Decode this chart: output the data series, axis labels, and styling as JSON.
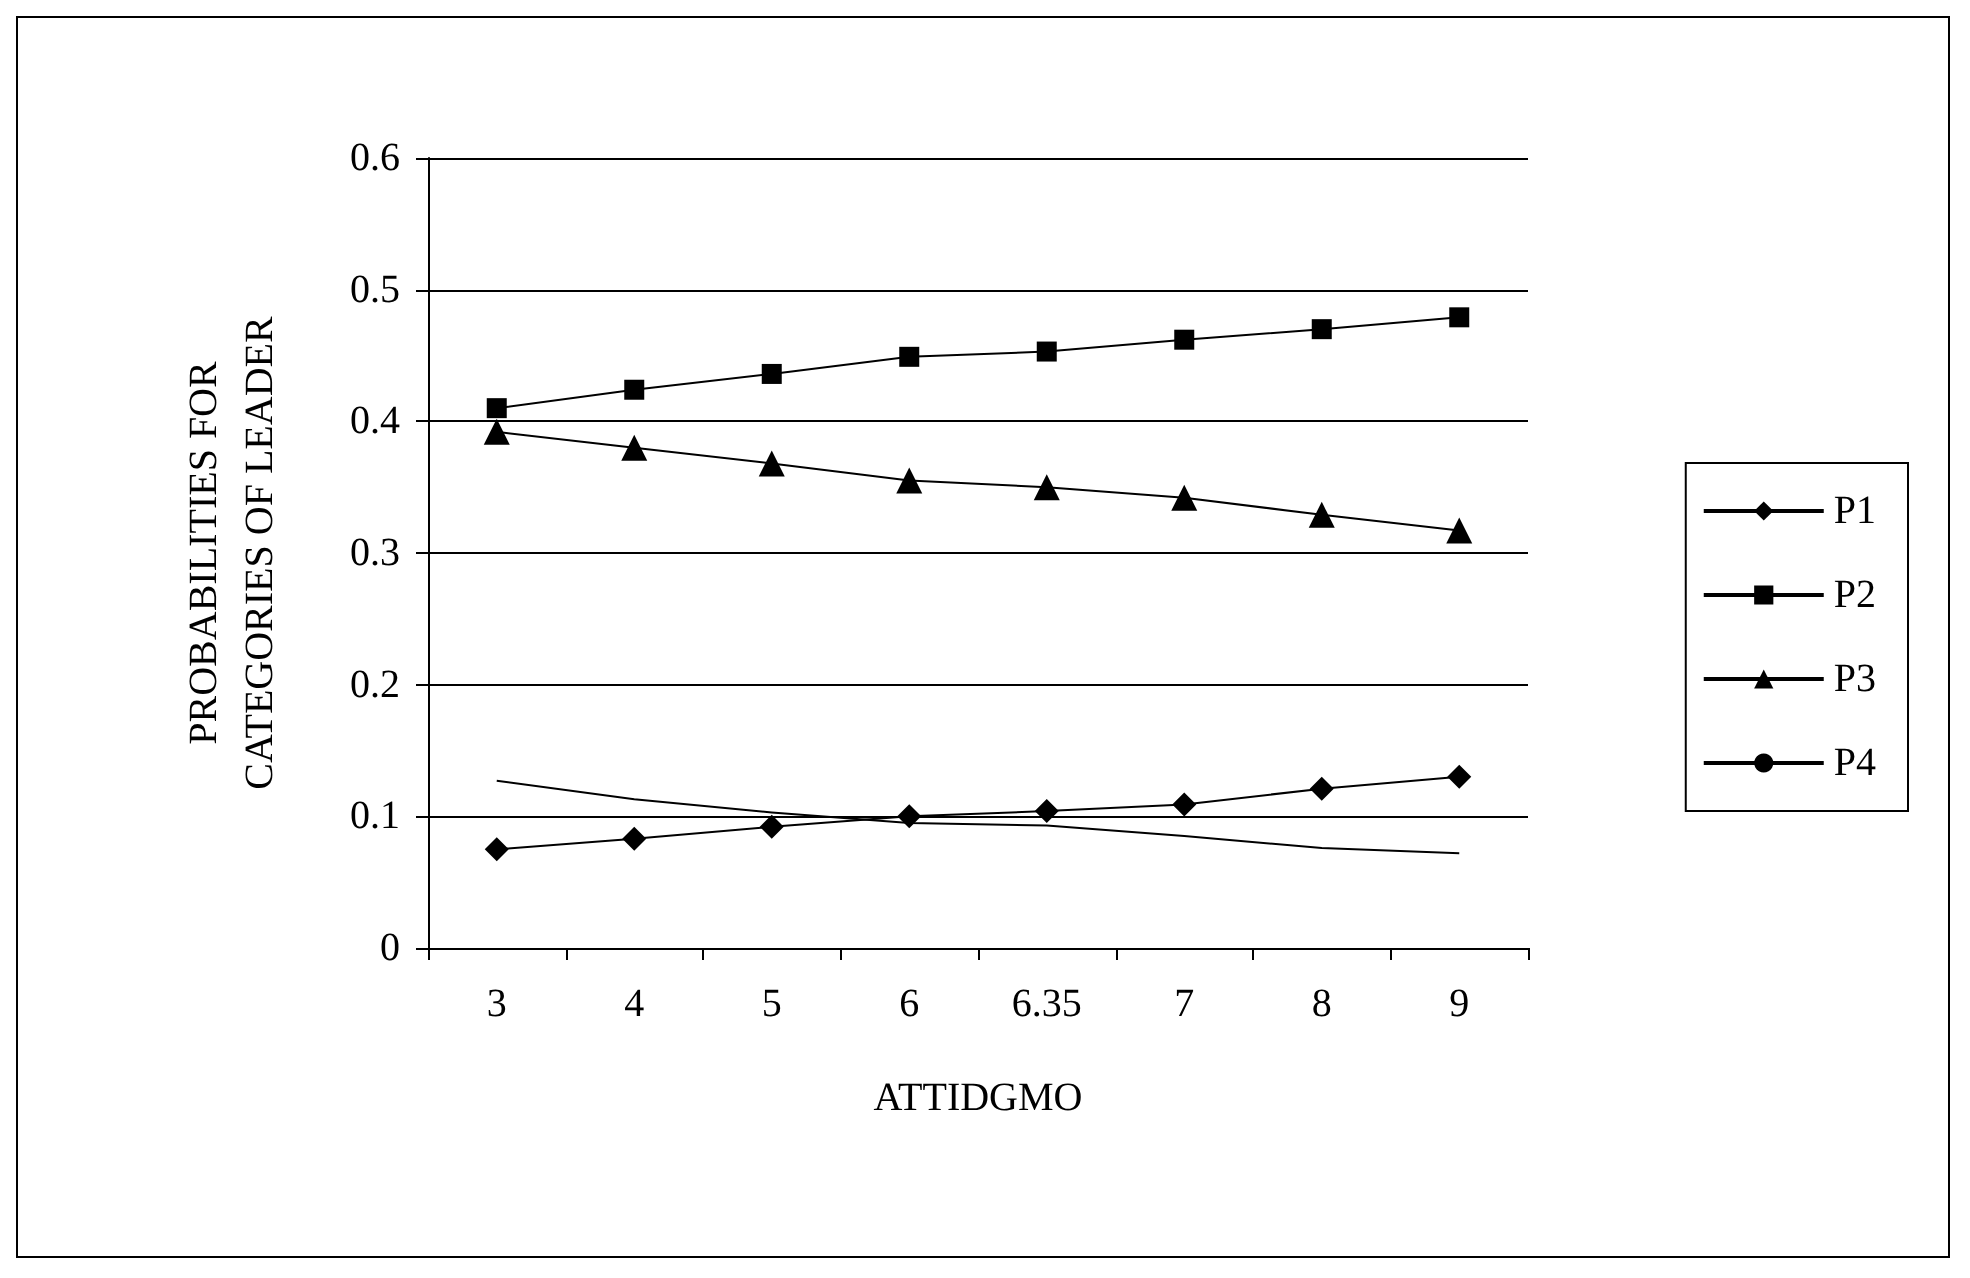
{
  "chart_data": {
    "type": "line",
    "xlabel": "ATTIDGMO",
    "ylabel": "PROBABILITIES FOR\nCATEGORIES OF LEADER",
    "categories": [
      "3",
      "4",
      "5",
      "6",
      "6.35",
      "7",
      "8",
      "9"
    ],
    "series": [
      {
        "name": "P1",
        "color": "#000000",
        "marker": "diamond",
        "values": [
          0.075,
          0.083,
          0.092,
          0.1,
          0.104,
          0.109,
          0.121,
          0.13
        ]
      },
      {
        "name": "P2",
        "color": "#000000",
        "marker": "square",
        "values": [
          0.41,
          0.424,
          0.436,
          0.449,
          0.453,
          0.462,
          0.47,
          0.479
        ]
      },
      {
        "name": "P3",
        "color": "#000000",
        "marker": "triangle",
        "values": [
          0.392,
          0.38,
          0.368,
          0.355,
          0.35,
          0.342,
          0.329,
          0.317
        ]
      },
      {
        "name": "P4",
        "color": "#000000",
        "marker": "none",
        "values": [
          0.127,
          0.113,
          0.103,
          0.095,
          0.093,
          0.085,
          0.076,
          0.072
        ]
      }
    ],
    "ylim": [
      0,
      0.6
    ],
    "yticks": [
      0,
      0.1,
      0.2,
      0.3,
      0.4,
      0.5,
      0.6
    ],
    "grid": "y",
    "legend": "right",
    "line_style": "solid"
  }
}
